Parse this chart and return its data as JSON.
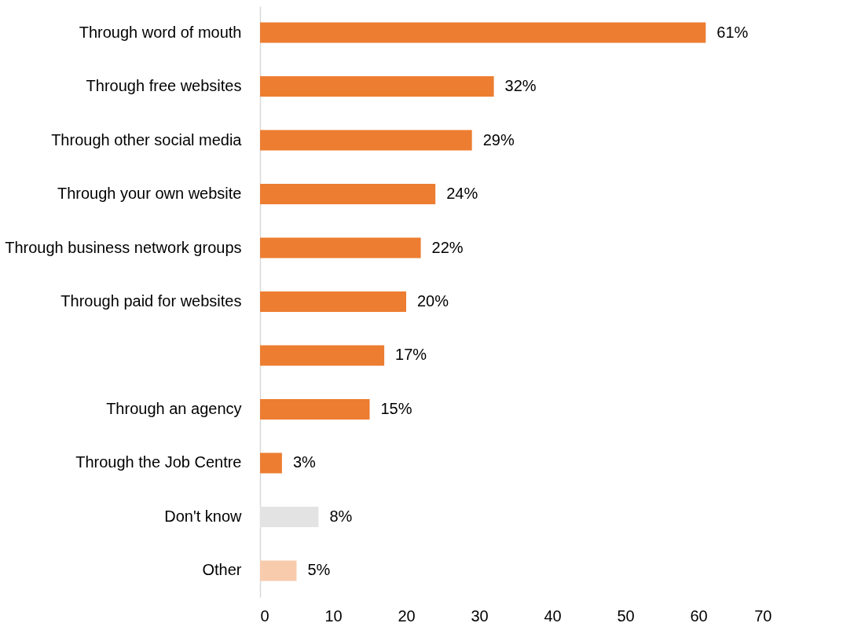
{
  "chart_data": {
    "type": "bar",
    "orientation": "horizontal",
    "categories": [
      "Through word of mouth",
      "Through free websites",
      "Through other social media",
      "Through your own website",
      "Through business network groups",
      "Through paid for websites",
      null,
      "Through an agency",
      "Through the Job Centre",
      "Don't know",
      "Other"
    ],
    "values": [
      61,
      32,
      29,
      24,
      22,
      20,
      17,
      15,
      3,
      8,
      5
    ],
    "value_labels": [
      "61%",
      "32%",
      "29%",
      "24%",
      "22%",
      "20%",
      "17%",
      "15%",
      "3%",
      "8%",
      "5%"
    ],
    "colors": [
      "#ed7d31",
      "#ed7d31",
      "#ed7d31",
      "#ed7d31",
      "#ed7d31",
      "#ed7d31",
      "#ed7d31",
      "#ed7d31",
      "#ed7d31",
      "#e3e3e3",
      "#f8cbad"
    ],
    "xlim": [
      0,
      70
    ],
    "xticks": [
      0,
      10,
      20,
      30,
      40,
      50,
      60,
      70
    ],
    "grid": false,
    "legend": false
  }
}
